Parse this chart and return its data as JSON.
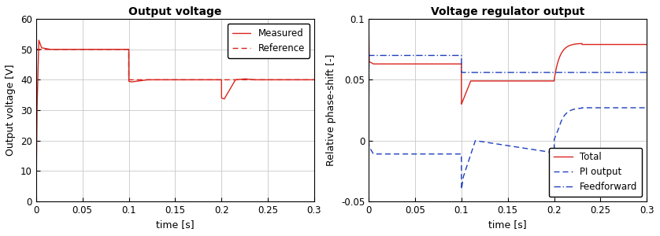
{
  "plot1": {
    "title": "Output voltage",
    "xlabel": "time [s]",
    "ylabel": "Output voltage [V]",
    "xlim": [
      0,
      0.3
    ],
    "ylim": [
      0,
      60
    ],
    "yticks": [
      0,
      10,
      20,
      30,
      40,
      50,
      60
    ],
    "xticks": [
      0,
      0.05,
      0.1,
      0.15,
      0.2,
      0.25,
      0.3
    ],
    "measured_color": "#d9251d",
    "reference_color": "#d9251d",
    "legend_labels": [
      "Measured",
      "Reference"
    ]
  },
  "plot2": {
    "title": "Voltage regulator output",
    "xlabel": "time [s]",
    "ylabel": "Relative phase-shift [-]",
    "xlim": [
      0,
      0.3
    ],
    "ylim": [
      -0.05,
      0.1
    ],
    "yticks": [
      -0.05,
      0,
      0.05,
      0.1
    ],
    "xticks": [
      0,
      0.05,
      0.1,
      0.15,
      0.2,
      0.25,
      0.3
    ],
    "total_color": "#d9251d",
    "pi_color": "#1f3fbd",
    "ff_color": "#1f3fbd",
    "legend_labels": [
      "Total",
      "PI output",
      "Feedforward"
    ]
  },
  "background_color": "#ffffff",
  "grid_color": "#c8c8c8"
}
